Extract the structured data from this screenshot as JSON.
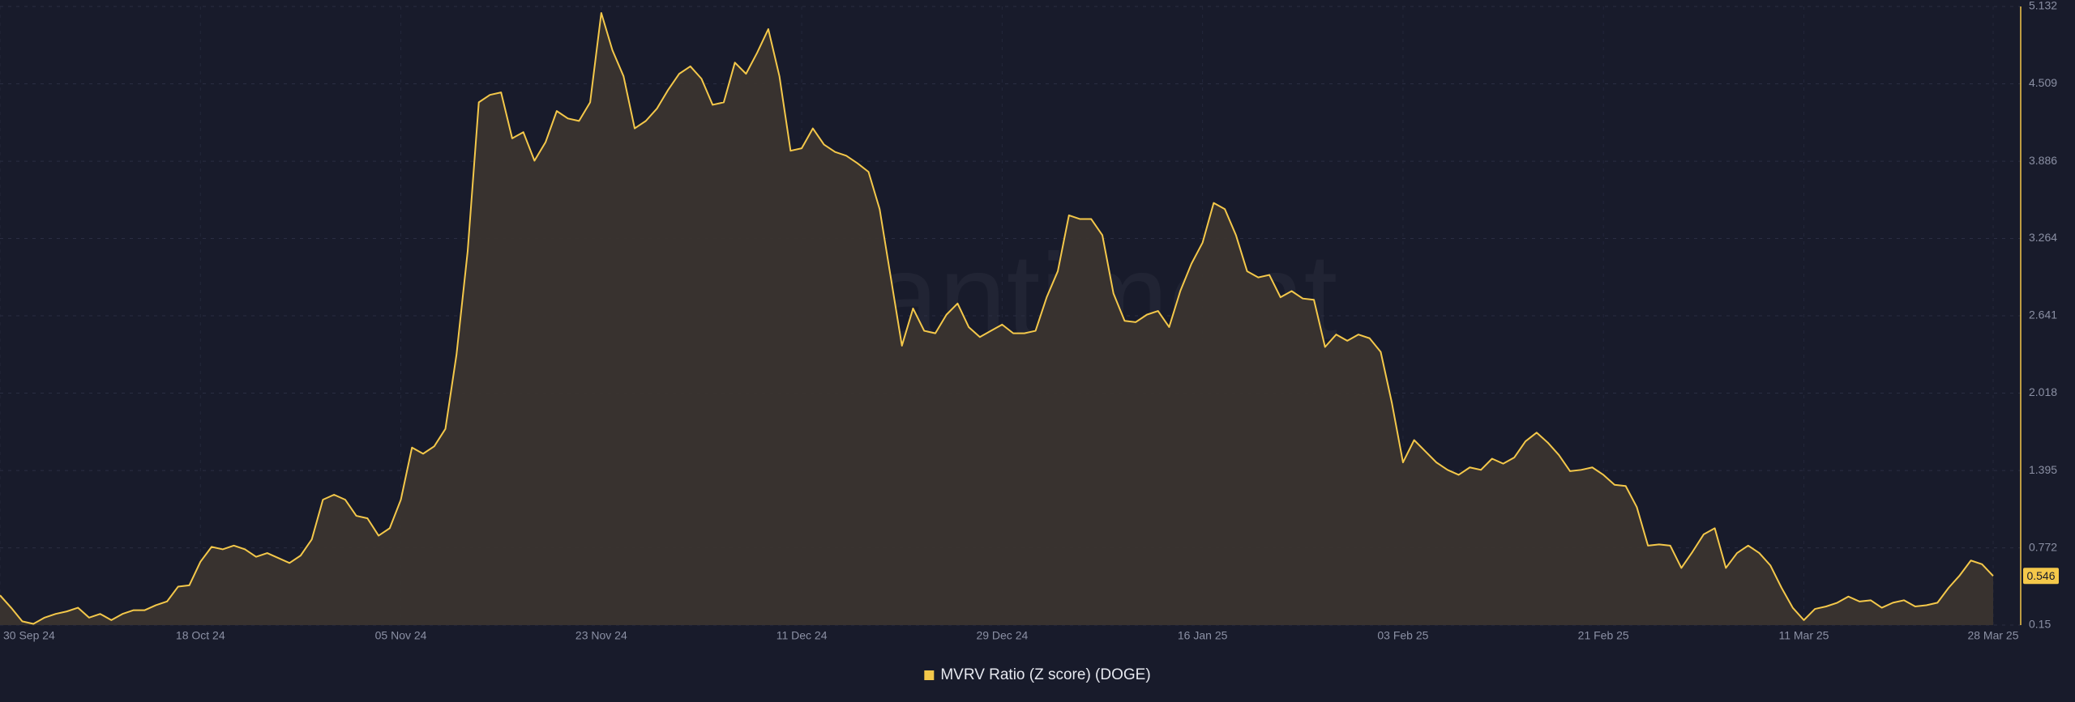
{
  "chart_data": {
    "type": "area",
    "watermark": "·santiment",
    "x": [
      "2024-09-30",
      "2024-10-01",
      "2024-10-02",
      "2024-10-03",
      "2024-10-04",
      "2024-10-05",
      "2024-10-06",
      "2024-10-07",
      "2024-10-08",
      "2024-10-09",
      "2024-10-10",
      "2024-10-11",
      "2024-10-12",
      "2024-10-13",
      "2024-10-14",
      "2024-10-15",
      "2024-10-16",
      "2024-10-17",
      "2024-10-18",
      "2024-10-19",
      "2024-10-20",
      "2024-10-21",
      "2024-10-22",
      "2024-10-23",
      "2024-10-24",
      "2024-10-25",
      "2024-10-26",
      "2024-10-27",
      "2024-10-28",
      "2024-10-29",
      "2024-10-30",
      "2024-10-31",
      "2024-11-01",
      "2024-11-02",
      "2024-11-03",
      "2024-11-04",
      "2024-11-05",
      "2024-11-06",
      "2024-11-07",
      "2024-11-08",
      "2024-11-09",
      "2024-11-10",
      "2024-11-11",
      "2024-11-12",
      "2024-11-13",
      "2024-11-14",
      "2024-11-15",
      "2024-11-16",
      "2024-11-17",
      "2024-11-18",
      "2024-11-19",
      "2024-11-20",
      "2024-11-21",
      "2024-11-22",
      "2024-11-23",
      "2024-11-24",
      "2024-11-25",
      "2024-11-26",
      "2024-11-27",
      "2024-11-28",
      "2024-11-29",
      "2024-11-30",
      "2024-12-01",
      "2024-12-02",
      "2024-12-03",
      "2024-12-04",
      "2024-12-05",
      "2024-12-06",
      "2024-12-07",
      "2024-12-08",
      "2024-12-09",
      "2024-12-10",
      "2024-12-11",
      "2024-12-12",
      "2024-12-13",
      "2024-12-14",
      "2024-12-15",
      "2024-12-16",
      "2024-12-17",
      "2024-12-18",
      "2024-12-19",
      "2024-12-20",
      "2024-12-21",
      "2024-12-22",
      "2024-12-23",
      "2024-12-24",
      "2024-12-25",
      "2024-12-26",
      "2024-12-27",
      "2024-12-28",
      "2024-12-29",
      "2024-12-30",
      "2024-12-31",
      "2025-01-01",
      "2025-01-02",
      "2025-01-03",
      "2025-01-04",
      "2025-01-05",
      "2025-01-06",
      "2025-01-07",
      "2025-01-08",
      "2025-01-09",
      "2025-01-10",
      "2025-01-11",
      "2025-01-12",
      "2025-01-13",
      "2025-01-14",
      "2025-01-15",
      "2025-01-16",
      "2025-01-17",
      "2025-01-18",
      "2025-01-19",
      "2025-01-20",
      "2025-01-21",
      "2025-01-22",
      "2025-01-23",
      "2025-01-24",
      "2025-01-25",
      "2025-01-26",
      "2025-01-27",
      "2025-01-28",
      "2025-01-29",
      "2025-01-30",
      "2025-01-31",
      "2025-02-01",
      "2025-02-02",
      "2025-02-03",
      "2025-02-04",
      "2025-02-05",
      "2025-02-06",
      "2025-02-07",
      "2025-02-08",
      "2025-02-09",
      "2025-02-10",
      "2025-02-11",
      "2025-02-12",
      "2025-02-13",
      "2025-02-14",
      "2025-02-15",
      "2025-02-16",
      "2025-02-17",
      "2025-02-18",
      "2025-02-19",
      "2025-02-20",
      "2025-02-21",
      "2025-02-22",
      "2025-02-23",
      "2025-02-24",
      "2025-02-25",
      "2025-02-26",
      "2025-02-27",
      "2025-02-28",
      "2025-03-01",
      "2025-03-02",
      "2025-03-03",
      "2025-03-04",
      "2025-03-05",
      "2025-03-06",
      "2025-03-07",
      "2025-03-08",
      "2025-03-09",
      "2025-03-10",
      "2025-03-11",
      "2025-03-12",
      "2025-03-13",
      "2025-03-14",
      "2025-03-15",
      "2025-03-16",
      "2025-03-17",
      "2025-03-18",
      "2025-03-19",
      "2025-03-20",
      "2025-03-21",
      "2025-03-22",
      "2025-03-23",
      "2025-03-24",
      "2025-03-25",
      "2025-03-26",
      "2025-03-27",
      "2025-03-28"
    ],
    "series": [
      {
        "name": "MVRV Ratio (Z score) (DOGE)",
        "color": "#f4c84a",
        "values": [
          0.39,
          0.29,
          0.18,
          0.16,
          0.21,
          0.24,
          0.26,
          0.29,
          0.21,
          0.24,
          0.19,
          0.24,
          0.27,
          0.27,
          0.31,
          0.34,
          0.46,
          0.47,
          0.66,
          0.78,
          0.76,
          0.79,
          0.76,
          0.7,
          0.73,
          0.69,
          0.65,
          0.71,
          0.84,
          1.16,
          1.2,
          1.16,
          1.03,
          1.01,
          0.87,
          0.93,
          1.16,
          1.58,
          1.53,
          1.59,
          1.73,
          2.33,
          3.16,
          4.36,
          4.42,
          4.44,
          4.07,
          4.12,
          3.89,
          4.04,
          4.29,
          4.23,
          4.21,
          4.36,
          5.08,
          4.78,
          4.57,
          4.15,
          4.21,
          4.31,
          4.46,
          4.59,
          4.65,
          4.55,
          4.34,
          4.36,
          4.68,
          4.59,
          4.76,
          4.95,
          4.57,
          3.97,
          3.99,
          4.15,
          4.02,
          3.96,
          3.93,
          3.87,
          3.8,
          3.5,
          2.95,
          2.4,
          2.7,
          2.52,
          2.5,
          2.65,
          2.74,
          2.55,
          2.47,
          2.52,
          2.57,
          2.5,
          2.5,
          2.52,
          2.79,
          3.0,
          3.45,
          3.42,
          3.42,
          3.29,
          2.82,
          2.6,
          2.59,
          2.65,
          2.68,
          2.55,
          2.84,
          3.06,
          3.23,
          3.55,
          3.5,
          3.29,
          3.0,
          2.95,
          2.97,
          2.79,
          2.84,
          2.78,
          2.77,
          2.39,
          2.49,
          2.44,
          2.49,
          2.46,
          2.35,
          1.94,
          1.46,
          1.64,
          1.55,
          1.46,
          1.4,
          1.36,
          1.42,
          1.4,
          1.49,
          1.45,
          1.5,
          1.63,
          1.7,
          1.62,
          1.52,
          1.39,
          1.4,
          1.42,
          1.36,
          1.28,
          1.27,
          1.1,
          0.79,
          0.8,
          0.79,
          0.61,
          0.74,
          0.88,
          0.93,
          0.61,
          0.73,
          0.79,
          0.73,
          0.63,
          0.45,
          0.29,
          0.19,
          0.28,
          0.3,
          0.33,
          0.38,
          0.34,
          0.35,
          0.29,
          0.33,
          0.35,
          0.3,
          0.31,
          0.33,
          0.45,
          0.55,
          0.67,
          0.64,
          0.546
        ]
      }
    ],
    "xlim": [
      "2024-09-30",
      "2025-03-28"
    ],
    "xticks": [
      {
        "value": "2024-09-30",
        "label": "30 Sep 24"
      },
      {
        "value": "2024-10-18",
        "label": "18 Oct 24"
      },
      {
        "value": "2024-11-05",
        "label": "05 Nov 24"
      },
      {
        "value": "2024-11-23",
        "label": "23 Nov 24"
      },
      {
        "value": "2024-12-11",
        "label": "11 Dec 24"
      },
      {
        "value": "2024-12-29",
        "label": "29 Dec 24"
      },
      {
        "value": "2025-01-16",
        "label": "16 Jan 25"
      },
      {
        "value": "2025-02-03",
        "label": "03 Feb 25"
      },
      {
        "value": "2025-02-21",
        "label": "21 Feb 25"
      },
      {
        "value": "2025-03-11",
        "label": "11 Mar 25"
      },
      {
        "value": "2025-03-28",
        "label": "28 Mar 25"
      }
    ],
    "ylim": [
      0.15,
      5.132
    ],
    "yticks": [
      0.15,
      0.772,
      1.395,
      2.018,
      2.641,
      3.264,
      3.886,
      4.509,
      5.132
    ],
    "grid": true,
    "legend": "bottom"
  }
}
